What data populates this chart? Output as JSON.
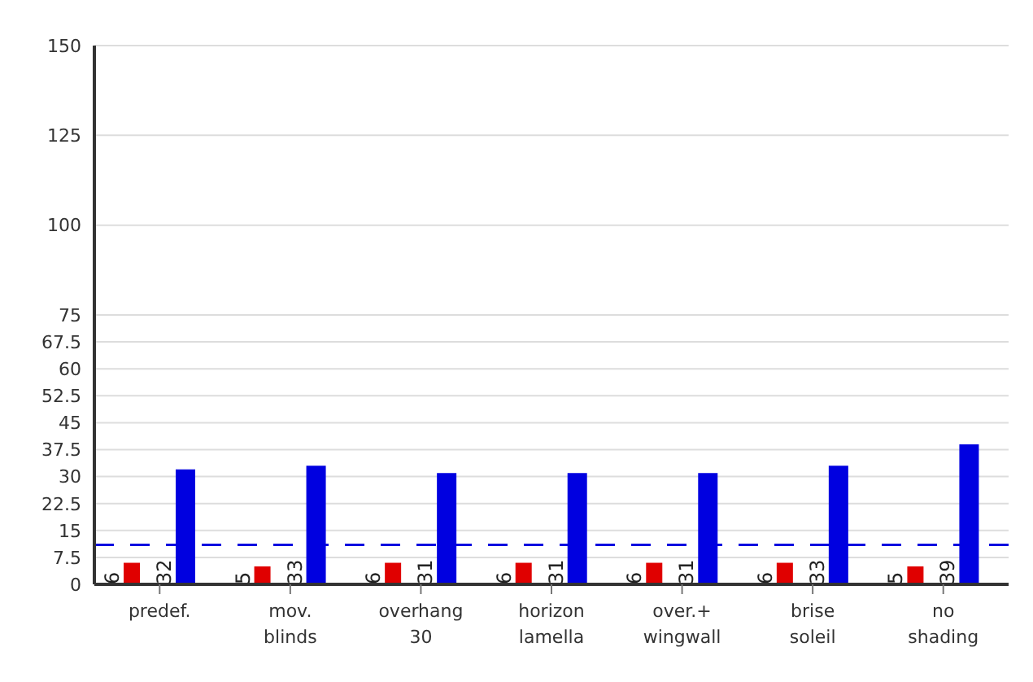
{
  "chart_data": {
    "type": "bar",
    "categories": [
      "predef.",
      "mov. blinds",
      "overhang 30",
      "horizon lamella",
      "over.+ wingwall",
      "brise soleil",
      "no shading"
    ],
    "series": [
      {
        "color": "#e00000",
        "values": [
          6,
          5,
          6,
          6,
          6,
          6,
          5
        ]
      },
      {
        "color": "#0000e0",
        "values": [
          32,
          33,
          31,
          31,
          31,
          33,
          39
        ]
      }
    ],
    "ylim": [
      0,
      150
    ],
    "yticks": [
      0,
      7.5,
      15,
      22.5,
      30,
      37.5,
      45,
      52.5,
      60,
      67.5,
      75,
      100,
      125,
      150
    ],
    "grid": "y",
    "data_labels": true,
    "ref_lines": [
      {
        "axis": "y",
        "value": 11,
        "color": "#0000e0",
        "line_style": "dashed"
      }
    ]
  }
}
